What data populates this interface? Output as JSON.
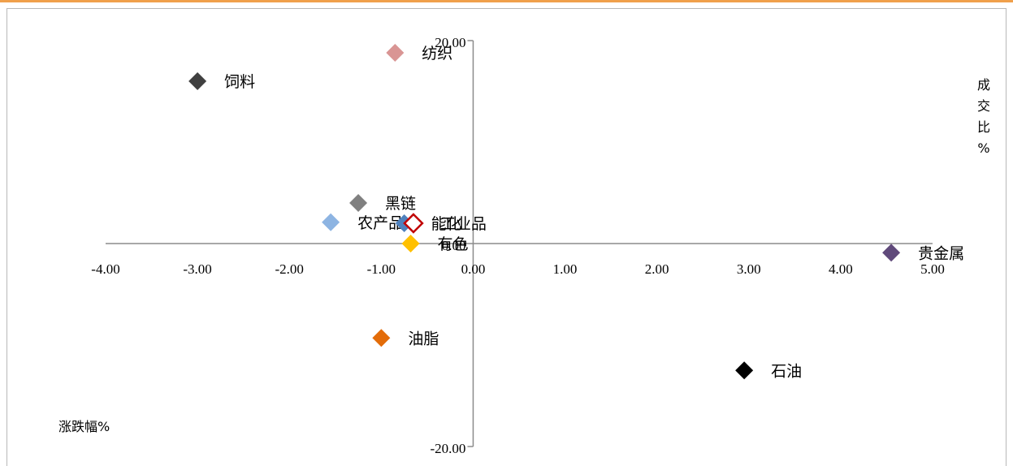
{
  "colors": {
    "top_border": "#F0A04B",
    "frame_border": "#B8B8B8",
    "axis": "#8C8C8C"
  },
  "chart_data": {
    "type": "scatter",
    "title": "",
    "xlabel": "涨跌幅%",
    "ylabel": "成交比%",
    "xlim": [
      -4,
      5
    ],
    "ylim": [
      -20,
      20
    ],
    "x_ticks": [
      -4,
      -3,
      -2,
      -1,
      0,
      1,
      2,
      3,
      4,
      5
    ],
    "x_tick_labels": [
      "-4.00",
      "-3.00",
      "-2.00",
      "-1.00",
      "0.00",
      "1.00",
      "2.00",
      "3.00",
      "4.00",
      "5.00"
    ],
    "y_tick_labels": [
      "20.00",
      "0.00",
      "-20.00"
    ],
    "grid": false,
    "legend": "none",
    "marker": "diamond",
    "points": [
      {
        "name": "纺织",
        "x": -0.85,
        "y": 18.8,
        "color": "#D99594"
      },
      {
        "name": "饲料",
        "x": -3.0,
        "y": 16.0,
        "color": "#404040"
      },
      {
        "name": "黑链",
        "x": -1.25,
        "y": 4.0,
        "color": "#808080"
      },
      {
        "name": "农产品",
        "x": -1.55,
        "y": 2.1,
        "color": "#8DB4E2"
      },
      {
        "name": "能化",
        "x": -0.75,
        "y": 2.0,
        "color": "#4F81BD"
      },
      {
        "name": "工业品",
        "x": -0.65,
        "y": 2.0,
        "color": "#C00000"
      },
      {
        "name": "有色",
        "x": -0.68,
        "y": 0.0,
        "color": "#FFC000"
      },
      {
        "name": "贵金属",
        "x": 4.55,
        "y": -0.9,
        "color": "#604A7B"
      },
      {
        "name": "油脂",
        "x": -1.0,
        "y": -9.3,
        "color": "#E36C09"
      },
      {
        "name": "石油",
        "x": 2.95,
        "y": -12.5,
        "color": "#000000"
      }
    ]
  }
}
